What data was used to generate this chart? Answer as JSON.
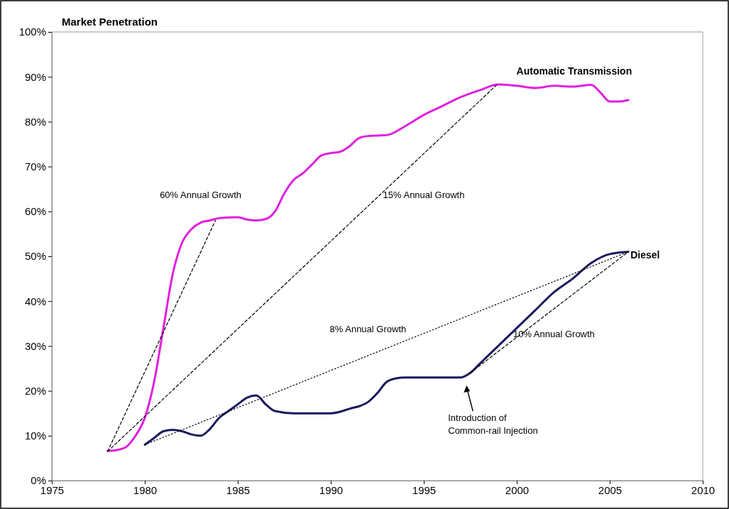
{
  "chart_data": {
    "type": "line",
    "title": "Market Penetration",
    "xlim": [
      1975,
      2010
    ],
    "xticks": [
      1975,
      1980,
      1985,
      1990,
      1995,
      2000,
      2005,
      2010
    ],
    "ylim": [
      0,
      100
    ],
    "yticks": [
      {
        "value": 0,
        "label": "0%"
      },
      {
        "value": 10,
        "label": "10%"
      },
      {
        "value": 20,
        "label": "20%"
      },
      {
        "value": 30,
        "label": "30%"
      },
      {
        "value": 40,
        "label": "40%"
      },
      {
        "value": 50,
        "label": "50%"
      },
      {
        "value": 60,
        "label": "60%"
      },
      {
        "value": 70,
        "label": "70%"
      },
      {
        "value": 80,
        "label": "80%"
      },
      {
        "value": 90,
        "label": "90%"
      },
      {
        "value": 100,
        "label": "100%"
      }
    ],
    "grid": false,
    "marker": "none",
    "series": [
      {
        "name": "Automatic Transmission",
        "color": "#e020e0",
        "line_style": "solid",
        "x": [
          1978,
          1978.5,
          1979,
          1979.5,
          1980,
          1980.5,
          1981,
          1981.5,
          1982,
          1982.5,
          1983,
          1983.5,
          1984,
          1985,
          1985.5,
          1986,
          1986.5,
          1987,
          1987.5,
          1988,
          1988.5,
          1989,
          1989.5,
          1990,
          1990.5,
          1991,
          1991.5,
          1992,
          1993,
          1994,
          1995,
          1996,
          1997,
          1998,
          1999,
          2000,
          2001,
          2002,
          2003,
          2004,
          2004.5,
          2005,
          2005.5,
          2006
        ],
        "values": [
          6.6,
          6.8,
          7.5,
          10,
          14,
          22,
          34,
          46,
          53,
          56,
          57.5,
          58,
          58.5,
          58.7,
          58.2,
          58,
          58.3,
          60,
          64,
          67,
          68.5,
          70.5,
          72.5,
          73,
          73.3,
          74.5,
          76.3,
          76.8,
          77,
          79,
          81.5,
          83.5,
          85.5,
          87,
          88.3,
          88,
          87.5,
          88,
          87.8,
          88.2,
          86.5,
          84.5,
          84.5,
          84.8
        ]
      },
      {
        "name": "Diesel",
        "color": "#1a1a5e",
        "line_style": "solid",
        "x": [
          1980,
          1980.5,
          1981,
          1981.5,
          1982,
          1982.5,
          1983,
          1983.5,
          1984,
          1984.5,
          1985,
          1985.5,
          1986,
          1986.5,
          1987,
          1988,
          1989,
          1990,
          1991,
          1992,
          1992.5,
          1993,
          1993.5,
          1994,
          1995,
          1996,
          1997,
          1997.5,
          1998,
          1999,
          2000,
          2001,
          2002,
          2003,
          2004,
          2005,
          2006
        ],
        "values": [
          8,
          9.5,
          11,
          11.3,
          11,
          10.3,
          10,
          11.5,
          14,
          15.5,
          17,
          18.5,
          19,
          17,
          15.5,
          15,
          15,
          15,
          16,
          17.5,
          19.5,
          22,
          22.8,
          23,
          23,
          23,
          23,
          24,
          26,
          30,
          34,
          38,
          42,
          45,
          48.5,
          50.5,
          51
        ]
      },
      {
        "color": "#000000",
        "line_style": "dashed",
        "x": [
          1978,
          1983.8
        ],
        "values": [
          6.5,
          58
        ]
      },
      {
        "color": "#000000",
        "line_style": "dashed",
        "x": [
          1978,
          1999
        ],
        "values": [
          6.5,
          88.5
        ]
      },
      {
        "color": "#000000",
        "line_style": "dotted",
        "x": [
          1980,
          2006
        ],
        "values": [
          8,
          51
        ]
      },
      {
        "color": "#000000",
        "line_style": "dashed",
        "x": [
          1997.5,
          2006
        ],
        "values": [
          24,
          51
        ]
      }
    ],
    "annotations": [
      "60% Annual Growth",
      "15% Annual Growth",
      "8% Annual Growth",
      "10% Annual Growth",
      "Introduction of\nCommon-rail Injection"
    ]
  }
}
